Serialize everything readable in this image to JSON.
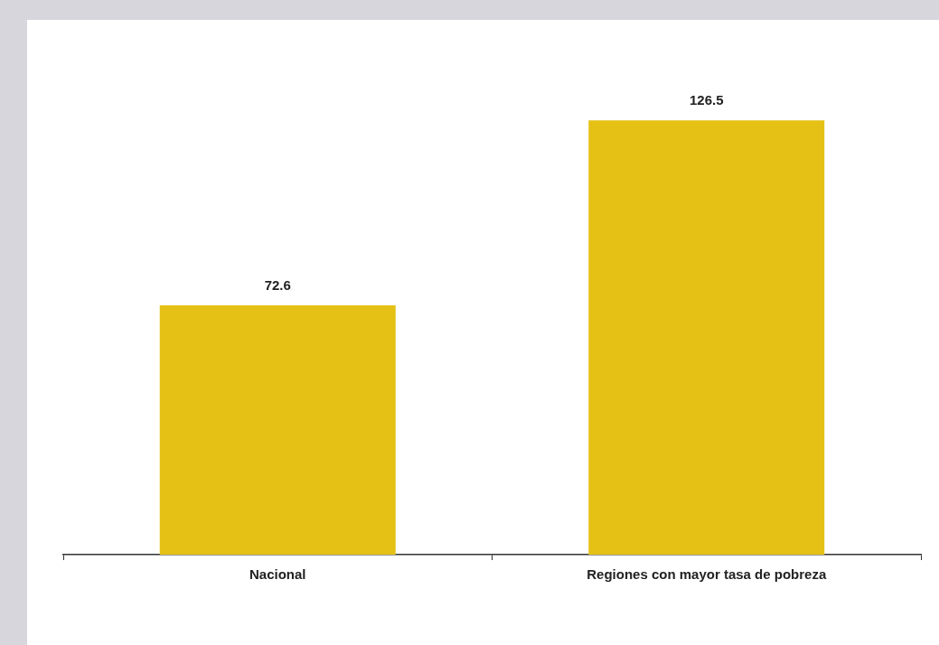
{
  "chart_data": {
    "type": "bar",
    "categories": [
      "Nacional",
      "Regiones con mayor tasa de pobreza"
    ],
    "values": [
      72.6,
      126.5
    ],
    "color": "#e5c115",
    "data_labels": true,
    "grid": false,
    "legend": false
  }
}
